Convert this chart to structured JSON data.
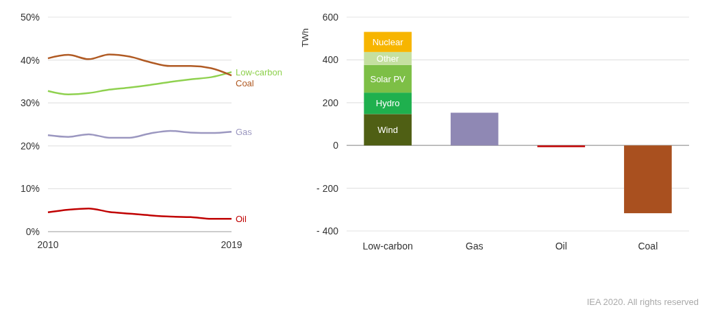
{
  "chart_data": [
    {
      "type": "line",
      "x": [
        2010,
        2011,
        2012,
        2013,
        2014,
        2015,
        2016,
        2017,
        2018,
        2019
      ],
      "xlim": [
        2010,
        2019
      ],
      "xticks": [
        2010,
        2019
      ],
      "ylim": [
        0,
        50
      ],
      "yticks": [
        {
          "value": 0,
          "label": "0%"
        },
        {
          "value": 10,
          "label": "10%"
        },
        {
          "value": 20,
          "label": "20%"
        },
        {
          "value": 30,
          "label": "30%"
        },
        {
          "value": 40,
          "label": "40%"
        },
        {
          "value": 50,
          "label": "50%"
        }
      ],
      "grid": "y",
      "series": [
        {
          "name": "Low-carbon",
          "color": "#8fd14f",
          "values": [
            32.8,
            32.0,
            32.3,
            33.1,
            33.6,
            34.2,
            34.9,
            35.5,
            36.0,
            37.2
          ]
        },
        {
          "name": "Coal",
          "color": "#b05a23",
          "values": [
            40.4,
            41.2,
            40.2,
            41.3,
            40.8,
            39.5,
            38.6,
            38.6,
            38.1,
            36.4
          ]
        },
        {
          "name": "Gas",
          "color": "#9b97c0",
          "values": [
            22.5,
            22.1,
            22.7,
            21.9,
            21.9,
            22.9,
            23.5,
            23.1,
            23.0,
            23.3
          ]
        },
        {
          "name": "Oil",
          "color": "#c00000",
          "values": [
            4.5,
            5.1,
            5.4,
            4.6,
            4.2,
            3.8,
            3.5,
            3.4,
            3.0,
            3.0
          ]
        }
      ]
    },
    {
      "type": "bar",
      "stacked": true,
      "ylabel": "TWh",
      "categories": [
        "Low-carbon",
        "Gas",
        "Oil",
        "Coal"
      ],
      "ylim": [
        -400,
        600
      ],
      "yticks": [
        {
          "value": -400,
          "label": "- 400"
        },
        {
          "value": -200,
          "label": "- 200"
        },
        0,
        200,
        400,
        600
      ],
      "grid": "y",
      "annotations": [
        "IEA 2020. All rights reserved"
      ],
      "series": [
        {
          "name": "Wind",
          "color": "#4f5f14",
          "values": [
            147,
            null,
            null,
            null
          ]
        },
        {
          "name": "Hydro",
          "color": "#1fb04e",
          "values": [
            100,
            null,
            null,
            null
          ]
        },
        {
          "name": "Solar PV",
          "color": "#7dbf46",
          "values": [
            129,
            null,
            null,
            null
          ]
        },
        {
          "name": "Other",
          "color": "#c5e0a0",
          "values": [
            61,
            null,
            null,
            null
          ]
        },
        {
          "name": "Nuclear",
          "color": "#f7b500",
          "values": [
            94,
            null,
            null,
            null
          ]
        },
        {
          "color": "#8f88b4",
          "values": [
            null,
            153,
            null,
            null
          ]
        },
        {
          "color": "#c00000",
          "values": [
            null,
            null,
            -8,
            null
          ]
        },
        {
          "color": "#a9501f",
          "values": [
            null,
            null,
            null,
            -317
          ]
        }
      ]
    }
  ]
}
